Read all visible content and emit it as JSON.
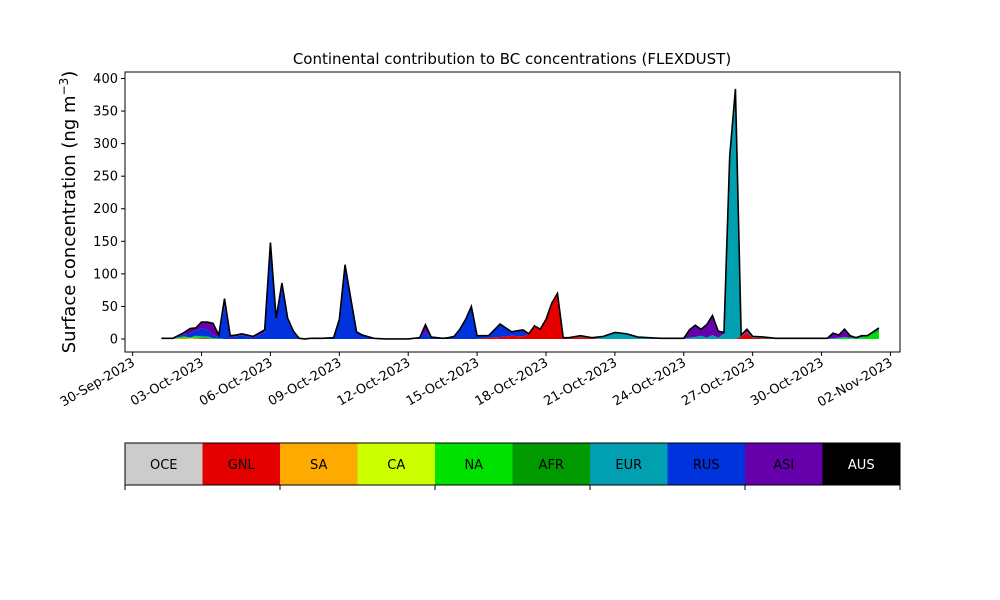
{
  "chart_data": {
    "type": "area",
    "title": "Continental contribution to BC concentrations (FLEXDUST)",
    "ylabel": "Surface concentration (ng m",
    "ylabel_sup": "−3",
    "ylabel_close": ")",
    "xlabel": "",
    "ylim": [
      -20,
      410
    ],
    "yticks": [
      0,
      50,
      100,
      150,
      200,
      250,
      300,
      350,
      400
    ],
    "xlim": [
      "2023-09-29T16:00",
      "2023-11-02T10:00"
    ],
    "xticks": [
      "30-Sep-2023",
      "03-Oct-2023",
      "06-Oct-2023",
      "09-Oct-2023",
      "12-Oct-2023",
      "15-Oct-2023",
      "18-Oct-2023",
      "21-Oct-2023",
      "24-Oct-2023",
      "27-Oct-2023",
      "30-Oct-2023",
      "02-Nov-2023"
    ],
    "x": [
      "2023-10-01T06:00",
      "2023-10-01T18:00",
      "2023-10-02T06:00",
      "2023-10-02T12:00",
      "2023-10-02T18:00",
      "2023-10-03T00:00",
      "2023-10-03T06:00",
      "2023-10-03T12:00",
      "2023-10-03T18:00",
      "2023-10-04T00:00",
      "2023-10-04T06:00",
      "2023-10-04T12:00",
      "2023-10-04T18:00",
      "2023-10-05T06:00",
      "2023-10-05T18:00",
      "2023-10-06T00:00",
      "2023-10-06T06:00",
      "2023-10-06T12:00",
      "2023-10-06T18:00",
      "2023-10-07T00:00",
      "2023-10-07T06:00",
      "2023-10-07T12:00",
      "2023-10-07T18:00",
      "2023-10-08T06:00",
      "2023-10-08T18:00",
      "2023-10-09T00:00",
      "2023-10-09T06:00",
      "2023-10-09T12:00",
      "2023-10-09T18:00",
      "2023-10-10T00:00",
      "2023-10-10T12:00",
      "2023-10-11T00:00",
      "2023-10-11T12:00",
      "2023-10-12T00:00",
      "2023-10-12T12:00",
      "2023-10-12T18:00",
      "2023-10-13T00:00",
      "2023-10-13T12:00",
      "2023-10-13T18:00",
      "2023-10-14T00:00",
      "2023-10-14T06:00",
      "2023-10-14T12:00",
      "2023-10-14T18:00",
      "2023-10-15T00:00",
      "2023-10-15T12:00",
      "2023-10-16T00:00",
      "2023-10-16T12:00",
      "2023-10-17T00:00",
      "2023-10-17T06:00",
      "2023-10-17T12:00",
      "2023-10-17T18:00",
      "2023-10-18T00:00",
      "2023-10-18T06:00",
      "2023-10-18T12:00",
      "2023-10-18T18:00",
      "2023-10-19T00:00",
      "2023-10-19T12:00",
      "2023-10-20T00:00",
      "2023-10-20T12:00",
      "2023-10-21T00:00",
      "2023-10-21T12:00",
      "2023-10-22T00:00",
      "2023-10-22T12:00",
      "2023-10-23T00:00",
      "2023-10-23T12:00",
      "2023-10-24T00:00",
      "2023-10-24T06:00",
      "2023-10-24T12:00",
      "2023-10-24T18:00",
      "2023-10-25T00:00",
      "2023-10-25T06:00",
      "2023-10-25T12:00",
      "2023-10-25T18:00",
      "2023-10-26T00:00",
      "2023-10-26T06:00",
      "2023-10-26T12:00",
      "2023-10-26T18:00",
      "2023-10-27T00:00",
      "2023-10-27T12:00",
      "2023-10-28T00:00",
      "2023-10-28T12:00",
      "2023-10-29T00:00",
      "2023-10-29T12:00",
      "2023-10-30T00:00",
      "2023-10-30T06:00",
      "2023-10-30T12:00",
      "2023-10-30T18:00",
      "2023-10-31T00:00",
      "2023-10-31T06:00",
      "2023-10-31T12:00",
      "2023-10-31T18:00",
      "2023-11-01T00:00",
      "2023-11-01T12:00"
    ],
    "series": [
      {
        "name": "OCE",
        "color": "#cccccc",
        "values": [
          0,
          0,
          0,
          0,
          0,
          0,
          0,
          0,
          0,
          0,
          0,
          0,
          0,
          0,
          0,
          0,
          0,
          0,
          0,
          0,
          0,
          0,
          0,
          0,
          0,
          0,
          0,
          0,
          0,
          0,
          0,
          0,
          0,
          0,
          0,
          0,
          0,
          0,
          0,
          0,
          0,
          0,
          0,
          0,
          0,
          0,
          0,
          0,
          0,
          0,
          0,
          0,
          0,
          0,
          0,
          0,
          0,
          0,
          0,
          0,
          0,
          0,
          0,
          0,
          0,
          0,
          0,
          0,
          0,
          0,
          0,
          0,
          0,
          0,
          0,
          0,
          0,
          0,
          0,
          0,
          0,
          0,
          0,
          0,
          0,
          0,
          0,
          0,
          0,
          0,
          0,
          0,
          0
        ]
      },
      {
        "name": "GNL",
        "color": "#e50000",
        "values": [
          0,
          0,
          1,
          0,
          1,
          1,
          1,
          0,
          0,
          0,
          0,
          0,
          0,
          0,
          0,
          0,
          0,
          0,
          0,
          0,
          0,
          0,
          0,
          0,
          0,
          0,
          0,
          0,
          0,
          0,
          0,
          0,
          0,
          0,
          0,
          0,
          0,
          0,
          0,
          0,
          0,
          0,
          0,
          0,
          2,
          3,
          5,
          4,
          8,
          20,
          15,
          30,
          55,
          70,
          2,
          1,
          3,
          1,
          0,
          0,
          0,
          0,
          0,
          0,
          0,
          0,
          0,
          0,
          0,
          0,
          0,
          0,
          0,
          0,
          0,
          4,
          10,
          2,
          1,
          0,
          0,
          0,
          0,
          0,
          0,
          0,
          0,
          0,
          0,
          0,
          0,
          0,
          0
        ]
      },
      {
        "name": "SA",
        "color": "#ffaa00",
        "values": [
          0,
          0,
          0,
          0,
          0,
          0,
          0,
          0,
          0,
          0,
          0,
          0,
          0,
          0,
          0,
          0,
          0,
          0,
          0,
          0,
          0,
          0,
          0,
          0,
          0,
          0,
          0,
          0,
          0,
          0,
          0,
          0,
          0,
          0,
          0,
          0,
          0,
          0,
          0,
          0,
          0,
          0,
          0,
          0,
          0,
          0,
          0,
          0,
          0,
          0,
          0,
          0,
          0,
          0,
          0,
          0,
          0,
          0,
          0,
          0,
          0,
          0,
          0,
          0,
          0,
          0,
          0,
          0,
          0,
          0,
          0,
          0,
          0,
          0,
          0,
          0,
          0,
          0,
          0,
          0,
          0,
          0,
          0,
          0,
          0,
          0,
          0,
          0,
          0,
          0,
          0,
          0,
          0
        ]
      },
      {
        "name": "CA",
        "color": "#ccff00",
        "values": [
          0,
          0,
          1,
          1,
          1,
          0,
          0,
          0,
          0,
          0,
          0,
          0,
          0,
          0,
          0,
          0,
          0,
          0,
          0,
          0,
          0,
          0,
          0,
          0,
          0,
          0,
          0,
          0,
          0,
          0,
          0,
          0,
          0,
          0,
          0,
          0,
          0,
          0,
          0,
          0,
          0,
          0,
          0,
          0,
          0,
          0,
          0,
          0,
          0,
          0,
          0,
          0,
          0,
          0,
          0,
          0,
          0,
          0,
          0,
          0,
          0,
          0,
          0,
          0,
          0,
          0,
          0,
          0,
          0,
          0,
          0,
          0,
          0,
          0,
          0,
          0,
          0,
          0,
          0,
          0,
          0,
          0,
          0,
          0,
          0,
          0,
          0,
          0,
          0,
          0,
          0,
          0,
          0
        ]
      },
      {
        "name": "NA",
        "color": "#00e100",
        "values": [
          1,
          1,
          2,
          1,
          2,
          2,
          2,
          1,
          1,
          0,
          0,
          0,
          0,
          0,
          0,
          0,
          0,
          0,
          0,
          0,
          0,
          0,
          0,
          0,
          0,
          0,
          0,
          0,
          0,
          0,
          0,
          0,
          0,
          0,
          0,
          0,
          0,
          0,
          0,
          0,
          0,
          0,
          0,
          0,
          0,
          0,
          0,
          0,
          0,
          0,
          0,
          0,
          0,
          0,
          0,
          0,
          0,
          0,
          0,
          0,
          0,
          0,
          0,
          0,
          0,
          0,
          0,
          0,
          0,
          0,
          0,
          0,
          0,
          0,
          0,
          0,
          0,
          0,
          0,
          0,
          0,
          0,
          0,
          0,
          0,
          0,
          1,
          2,
          1,
          1,
          2,
          4,
          12
        ]
      },
      {
        "name": "AFR",
        "color": "#009900",
        "values": [
          0,
          0,
          0,
          0,
          0,
          0,
          0,
          0,
          0,
          0,
          0,
          0,
          0,
          0,
          0,
          0,
          0,
          0,
          0,
          0,
          0,
          0,
          0,
          0,
          0,
          0,
          0,
          0,
          0,
          0,
          0,
          0,
          0,
          0,
          0,
          0,
          0,
          0,
          0,
          0,
          0,
          0,
          0,
          0,
          0,
          0,
          0,
          0,
          0,
          0,
          0,
          0,
          0,
          0,
          0,
          0,
          0,
          0,
          0,
          0,
          0,
          0,
          0,
          0,
          0,
          0,
          0,
          0,
          0,
          0,
          0,
          0,
          0,
          0,
          0,
          0,
          0,
          0,
          0,
          0,
          0,
          0,
          0,
          0,
          0,
          0,
          0,
          0,
          0,
          0,
          0,
          0,
          3
        ]
      },
      {
        "name": "EUR",
        "color": "#00a0b0",
        "values": [
          0,
          0,
          0,
          0,
          1,
          1,
          1,
          0,
          0,
          0,
          0,
          0,
          0,
          0,
          0,
          0,
          0,
          0,
          0,
          0,
          0,
          0,
          0,
          0,
          0,
          0,
          0,
          0,
          0,
          0,
          0,
          0,
          0,
          0,
          0,
          0,
          0,
          0,
          0,
          0,
          0,
          0,
          0,
          0,
          0,
          0,
          0,
          0,
          0,
          0,
          0,
          0,
          0,
          0,
          0,
          1,
          2,
          1,
          4,
          10,
          8,
          3,
          2,
          1,
          1,
          1,
          2,
          3,
          5,
          2,
          6,
          2,
          8,
          270,
          370,
          1,
          1,
          1,
          1,
          1,
          1,
          1,
          1,
          1,
          1,
          1,
          1,
          1,
          1,
          1,
          1,
          1,
          2
        ]
      },
      {
        "name": "RUS",
        "color": "#0033dd",
        "values": [
          0,
          0,
          3,
          6,
          8,
          12,
          10,
          5,
          2,
          50,
          2,
          4,
          6,
          2,
          10,
          140,
          30,
          80,
          30,
          10,
          1,
          0,
          1,
          1,
          2,
          30,
          110,
          60,
          10,
          5,
          1,
          0,
          0,
          0,
          2,
          10,
          3,
          1,
          2,
          4,
          15,
          30,
          50,
          5,
          3,
          20,
          6,
          10,
          0,
          0,
          0,
          0,
          0,
          0,
          0,
          0,
          0,
          0,
          0,
          0,
          0,
          0,
          0,
          0,
          0,
          0,
          0,
          0,
          0,
          0,
          0,
          0,
          0,
          0,
          0,
          0,
          0,
          0,
          0,
          0,
          0,
          0,
          0,
          0,
          0,
          0,
          0,
          0,
          0,
          0,
          0,
          0,
          0
        ]
      },
      {
        "name": "ASI",
        "color": "#6600aa",
        "values": [
          0,
          0,
          3,
          8,
          4,
          10,
          12,
          18,
          3,
          12,
          3,
          2,
          2,
          2,
          4,
          8,
          2,
          6,
          2,
          2,
          0,
          0,
          0,
          0,
          0,
          0,
          4,
          2,
          1,
          1,
          0,
          0,
          0,
          0,
          0,
          12,
          0,
          0,
          0,
          0,
          0,
          0,
          0,
          0,
          0,
          0,
          0,
          0,
          0,
          0,
          0,
          0,
          0,
          0,
          0,
          0,
          0,
          0,
          0,
          0,
          0,
          0,
          0,
          0,
          0,
          0,
          12,
          18,
          10,
          20,
          30,
          10,
          2,
          10,
          14,
          1,
          4,
          1,
          1,
          0,
          0,
          0,
          0,
          0,
          0,
          8,
          4,
          12,
          3,
          0,
          2,
          0,
          0
        ]
      },
      {
        "name": "AUS",
        "color": "#000000",
        "values": [
          0,
          0,
          0,
          0,
          0,
          0,
          0,
          0,
          0,
          0,
          0,
          0,
          0,
          0,
          0,
          0,
          0,
          0,
          0,
          0,
          0,
          0,
          0,
          0,
          0,
          0,
          0,
          0,
          0,
          0,
          0,
          0,
          0,
          0,
          0,
          0,
          0,
          0,
          0,
          0,
          0,
          0,
          0,
          0,
          0,
          0,
          0,
          0,
          0,
          0,
          0,
          0,
          0,
          0,
          0,
          0,
          0,
          0,
          0,
          0,
          0,
          0,
          0,
          0,
          0,
          0,
          0,
          0,
          0,
          0,
          0,
          0,
          0,
          0,
          0,
          0,
          0,
          0,
          0,
          0,
          0,
          0,
          0,
          0,
          0,
          0,
          0,
          0,
          0,
          0,
          0,
          0,
          0
        ]
      }
    ],
    "total_outline": true,
    "legend_placement": "bottom",
    "grid": false
  }
}
